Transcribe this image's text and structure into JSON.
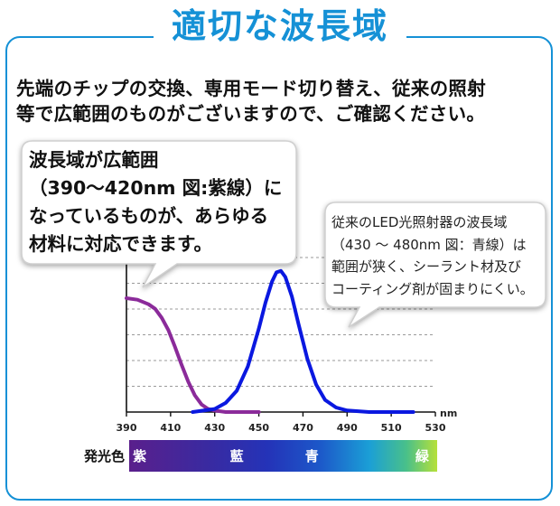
{
  "heading": "適切な波長域",
  "intro": [
    "先端のチップの交換、専用モード切り替え、従来の照射",
    "等で広範囲のものがございますので、ご確認ください。"
  ],
  "callout_wide": [
    "波長域が広範囲",
    "（390～420nm 図:紫線）に",
    "なっているものが、あらゆる",
    "材料に対応できます。"
  ],
  "callout_narrow": [
    "従来のLED光照射器の波長域",
    "（430 ～ 480nm 図：青線）は",
    "範囲が狭く、シーラント材及び",
    "コーティング剤が固まりにくい。"
  ],
  "colors": {
    "accent": "#1591d6",
    "violet": "#8b2b9a",
    "blue": "#0a18e0"
  },
  "chart_data": {
    "type": "line",
    "x_unit": "nm",
    "x_ticks": [
      390,
      410,
      430,
      450,
      470,
      490,
      510,
      530
    ],
    "xlim": [
      390,
      530
    ],
    "ylim": [
      0,
      1
    ],
    "grid": true,
    "series": [
      {
        "color": "#8b2b9a",
        "x": [
          390,
          395,
          400,
          403,
          406,
          409,
          412,
          415,
          418,
          421,
          424,
          427,
          430,
          435,
          440,
          450
        ],
        "y": [
          0.75,
          0.74,
          0.71,
          0.68,
          0.62,
          0.54,
          0.43,
          0.31,
          0.2,
          0.11,
          0.05,
          0.02,
          0.01,
          0.0,
          0.0,
          0.0
        ]
      },
      {
        "color": "#0a18e0",
        "x": [
          420,
          430,
          435,
          440,
          445,
          450,
          453,
          456,
          458,
          460,
          462,
          465,
          468,
          472,
          476,
          480,
          485,
          490,
          500,
          510,
          520
        ],
        "y": [
          0.0,
          0.02,
          0.06,
          0.14,
          0.3,
          0.55,
          0.72,
          0.86,
          0.92,
          0.93,
          0.89,
          0.76,
          0.58,
          0.35,
          0.18,
          0.08,
          0.03,
          0.01,
          0.0,
          0.0,
          0.0
        ]
      }
    ],
    "emission_band": {
      "title": "発光色",
      "labels": [
        {
          "text": "紫",
          "nm": 396
        },
        {
          "text": "藍",
          "nm": 440
        },
        {
          "text": "青",
          "nm": 474
        },
        {
          "text": "緑",
          "nm": 524
        }
      ]
    }
  }
}
